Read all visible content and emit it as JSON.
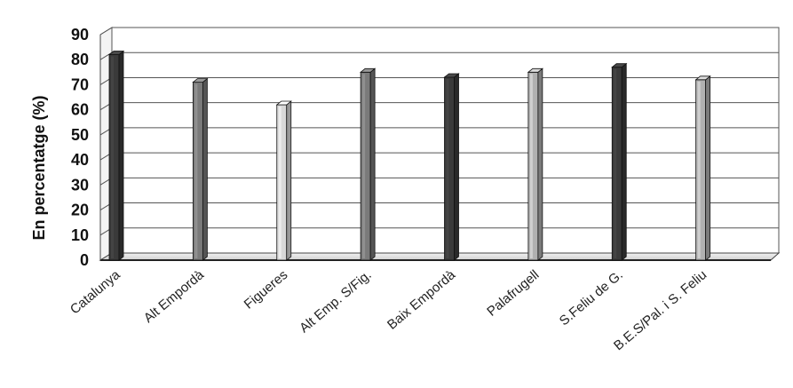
{
  "chart_data": {
    "type": "bar",
    "ylabel": "En percentatge (%)",
    "ylim": [
      0,
      90
    ],
    "yticks": [
      0,
      10,
      20,
      30,
      40,
      50,
      60,
      70,
      80,
      90
    ],
    "grid": true,
    "categories": [
      "Catalunya",
      "Alt Empordà",
      "Figueres",
      "Alt Emp. S/Fig.",
      "Baix Empordà",
      "Palafrugell",
      "S.Feliu de G.",
      "B.E.S/Pal. i S. Feliu"
    ],
    "values": [
      82,
      71,
      62,
      75,
      73,
      75,
      77,
      72
    ],
    "bar_colors": [
      "#3a3a3a",
      "#7a7a7a",
      "#d8d8d8",
      "#7a7a7a",
      "#3a3a3a",
      "#b0b0b0",
      "#3a3a3a",
      "#b0b0b0"
    ]
  }
}
